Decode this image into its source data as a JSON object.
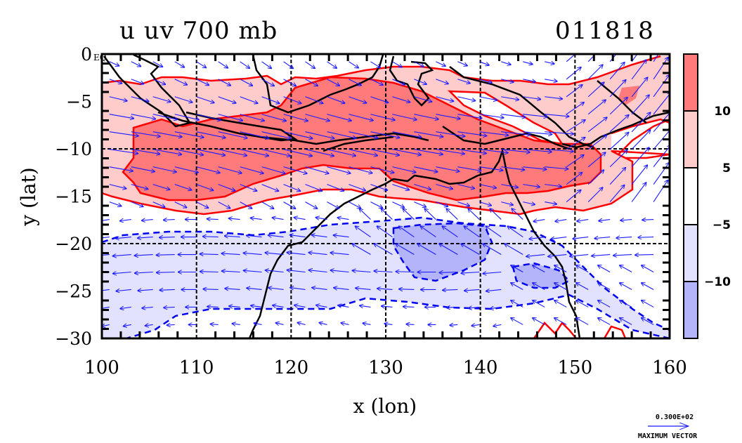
{
  "chart_data": {
    "type": "heatmap",
    "subtype": "filled-contour-with-vector-overlay",
    "title": "u uv 700 mb",
    "date_label": "011818",
    "xlabel": "x (lon)",
    "ylabel": "y (lat)",
    "xlim": [
      100,
      160
    ],
    "ylim": [
      -30,
      0
    ],
    "x_ticks": [
      "100",
      "110",
      "120",
      "130",
      "140",
      "150",
      "160"
    ],
    "y_ticks": [
      "0",
      "−5",
      "−10",
      "−15",
      "−20",
      "−25",
      "−30"
    ],
    "equator_label": "EQ",
    "grid": true,
    "colorbar": {
      "position": "right",
      "levels": [
        {
          "label": "10",
          "value": 10
        },
        {
          "label": "5",
          "value": 5
        },
        {
          "label": "−5",
          "value": -5
        },
        {
          "label": "−10",
          "value": -10
        }
      ],
      "colors": [
        "#ff7b7b",
        "#ffcccc",
        "#ffffff",
        "#e2e2ff",
        "#b4b4fa"
      ]
    },
    "contour_colors": {
      "positive": "#ff0000",
      "negative": "#0000ee",
      "coast": "#000000",
      "vector": "#1a1aff"
    },
    "vector_reference": {
      "magnitude": "0.300E+02",
      "label": "MAXIMUM VECTOR"
    }
  }
}
